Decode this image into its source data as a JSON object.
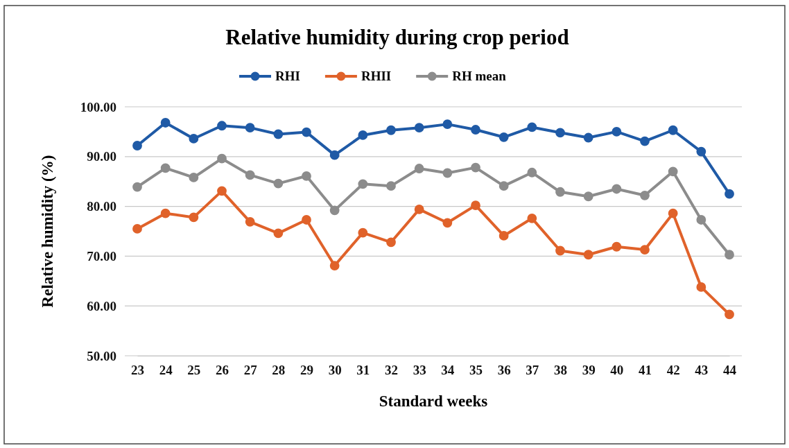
{
  "chart_data": {
    "type": "line",
    "title": "Relative humidity during crop period",
    "xlabel": "Standard weeks",
    "ylabel": "Relative humidity (%)",
    "categories": [
      "23",
      "24",
      "25",
      "26",
      "27",
      "28",
      "29",
      "30",
      "31",
      "32",
      "33",
      "34",
      "35",
      "36",
      "37",
      "38",
      "39",
      "40",
      "41",
      "42",
      "43",
      "44"
    ],
    "series": [
      {
        "name": "RHI",
        "color": "#1f5aa6",
        "values": [
          92.2,
          96.8,
          93.6,
          96.2,
          95.8,
          94.5,
          94.9,
          90.3,
          94.3,
          95.3,
          95.8,
          96.5,
          95.4,
          93.9,
          95.9,
          94.8,
          93.8,
          95.0,
          93.1,
          95.3,
          91.0,
          82.5
        ]
      },
      {
        "name": "RHII",
        "color": "#e0622a",
        "values": [
          75.5,
          78.6,
          77.8,
          83.1,
          76.9,
          74.6,
          77.3,
          68.1,
          74.7,
          72.8,
          79.4,
          76.7,
          80.2,
          74.1,
          77.6,
          71.1,
          70.3,
          71.9,
          71.3,
          78.6,
          63.8,
          58.3
        ]
      },
      {
        "name": "RH mean",
        "color": "#8c8c8c",
        "values": [
          83.9,
          87.7,
          85.8,
          89.6,
          86.3,
          84.6,
          86.1,
          79.2,
          84.5,
          84.1,
          87.6,
          86.7,
          87.8,
          84.1,
          86.8,
          82.9,
          82.0,
          83.5,
          82.2,
          87.0,
          77.3,
          70.3
        ]
      }
    ],
    "ylim": [
      50,
      100
    ],
    "yticks": [
      {
        "value": 50,
        "label": "50.00"
      },
      {
        "value": 60,
        "label": "60.00"
      },
      {
        "value": 70,
        "label": "70.00"
      },
      {
        "value": 80,
        "label": "80.00"
      },
      {
        "value": 90,
        "label": "90.00"
      },
      {
        "value": 100,
        "label": "100.00"
      }
    ],
    "grid": "y",
    "legend": "top",
    "marker": "circle",
    "line_style": "solid"
  }
}
